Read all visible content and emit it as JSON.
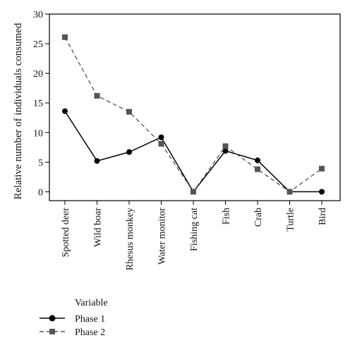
{
  "chart_data": {
    "type": "line",
    "categories": [
      "Spotted deer",
      "Wild boar",
      "Rhesus monkey",
      "Water monitor",
      "Fishing cat",
      "Fish",
      "Crab",
      "Turtle",
      "Bird"
    ],
    "series": [
      {
        "name": "Phase 1",
        "values": [
          13.6,
          5.2,
          6.7,
          9.2,
          0.0,
          6.9,
          5.3,
          0.0,
          0.0
        ],
        "color": "#000000",
        "marker": "circle",
        "line": "solid"
      },
      {
        "name": "Phase 2",
        "values": [
          26.1,
          16.2,
          13.5,
          8.1,
          0.0,
          7.7,
          3.8,
          0.0,
          3.9
        ],
        "color": "#555555",
        "marker": "square",
        "line": "dashed"
      }
    ],
    "xlabel": "",
    "ylabel": "Relative number of individuals consumed",
    "ylim": [
      -1.5,
      30
    ],
    "yticks": [
      0,
      5,
      10,
      15,
      20,
      25,
      30
    ],
    "grid": false,
    "legend": {
      "title": "Variable",
      "position": "bottom-left"
    }
  }
}
